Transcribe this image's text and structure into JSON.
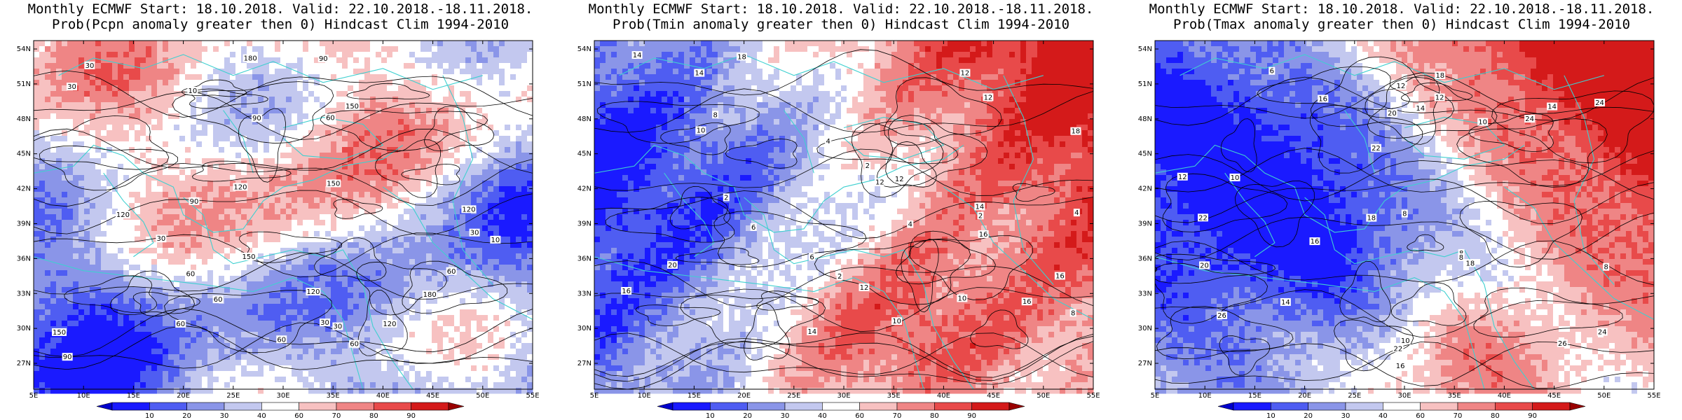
{
  "panels": [
    {
      "title_line1": "Monthly ECMWF Start: 18.10.2018. Valid: 22.10.2018.-18.11.2018.",
      "title_line2": "Prob(Pcpn anomaly greater then 0) Hindcast Clim 1994-2010",
      "variable": "precipitation",
      "contour_labels": [
        "60",
        "60",
        "60",
        "30",
        "90",
        "120",
        "150",
        "90",
        "60",
        "30",
        "120",
        "150",
        "120",
        "90",
        "180",
        "60",
        "120",
        "150",
        "180",
        "90",
        "120",
        "30",
        "60",
        "30",
        "150",
        "60",
        "30",
        "10",
        "30",
        "10"
      ]
    },
    {
      "title_line1": "Monthly ECMWF Start: 18.10.2018. Valid: 22.10.2018.-18.11.2018.",
      "title_line2": "Prob(Tmin anomaly greater then 0) Hindcast Clim 1994-2010",
      "variable": "tmin",
      "contour_labels": [
        "2",
        "2",
        "2",
        "4",
        "6",
        "8",
        "4",
        "10",
        "12",
        "14",
        "16",
        "18",
        "12",
        "14",
        "10",
        "16",
        "20",
        "12",
        "14",
        "16",
        "18",
        "2",
        "4",
        "6",
        "8",
        "12",
        "10",
        "14",
        "16",
        "12"
      ]
    },
    {
      "title_line1": "Monthly ECMWF Start: 18.10.2018. Valid: 22.10.2018.-18.11.2018.",
      "title_line2": "Prob(Tmax anomaly greater then 0) Hindcast Clim 1994-2010",
      "variable": "tmax",
      "contour_labels": [
        "6",
        "8",
        "8",
        "10",
        "12",
        "14",
        "16",
        "18",
        "16",
        "14",
        "12",
        "10",
        "8",
        "20",
        "22",
        "24",
        "26",
        "22",
        "24",
        "20",
        "18",
        "16",
        "12",
        "14",
        "18",
        "10",
        "22",
        "24",
        "26",
        "8"
      ]
    }
  ],
  "lat_ticks": [
    "54N",
    "51N",
    "48N",
    "45N",
    "42N",
    "39N",
    "36N",
    "33N",
    "30N",
    "27N"
  ],
  "lon_ticks": [
    "5E",
    "10E",
    "15E",
    "20E",
    "25E",
    "30E",
    "35E",
    "40E",
    "45E",
    "50E",
    "55E"
  ],
  "colorbar": {
    "labels": [
      "10",
      "20",
      "30",
      "40",
      "60",
      "70",
      "80",
      "90"
    ],
    "colors": [
      "#1a1aff",
      "#4f5df2",
      "#8a95e8",
      "#c3c8ef",
      "#ffffff",
      "#f7c1c1",
      "#ef8585",
      "#e84a4a",
      "#d41a1a"
    ],
    "min_arrow_color": "#0000cc",
    "max_arrow_color": "#990000"
  },
  "style": {
    "coast_color": "#3fd0d0",
    "contour_color": "#000000"
  }
}
